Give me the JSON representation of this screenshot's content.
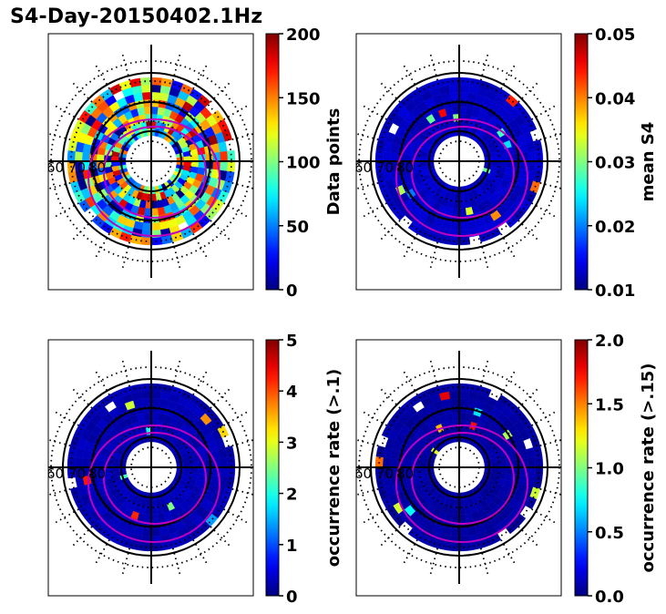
{
  "figure_title": "S4-Day-20150402.1Hz",
  "colors": {
    "ring": "#000000",
    "contour": "#c000c0",
    "cmap": [
      "#00007f",
      "#0000ff",
      "#0080ff",
      "#00ffff",
      "#80ff80",
      "#ffff00",
      "#ff8000",
      "#ff0000",
      "#7f0000"
    ]
  },
  "chart_data": [
    {
      "type": "heatmap",
      "projection": "polar",
      "title": "",
      "colorbar_label": "Data points",
      "clim": [
        0,
        200
      ],
      "colorbar_ticks": [
        "0",
        "50",
        "100",
        "150",
        "200"
      ],
      "background_level": 0.45,
      "variability": 0.55,
      "polar_labels": [
        "60",
        "70",
        "80"
      ]
    },
    {
      "type": "heatmap",
      "projection": "polar",
      "title": "",
      "colorbar_label": "mean S4",
      "clim": [
        0.01,
        0.05
      ],
      "colorbar_ticks": [
        "0.01",
        "0.02",
        "0.03",
        "0.04",
        "0.05"
      ],
      "background_level": 0.04,
      "variability": 0.05,
      "polar_labels": [
        "60",
        "70",
        "80"
      ]
    },
    {
      "type": "heatmap",
      "projection": "polar",
      "title": "",
      "colorbar_label": "occurrence rate (>.1)",
      "clim": [
        0,
        5
      ],
      "colorbar_ticks": [
        "0",
        "1",
        "2",
        "3",
        "4",
        "5"
      ],
      "background_level": 0.03,
      "variability": 0.04,
      "polar_labels": [
        "60",
        "70",
        "80"
      ]
    },
    {
      "type": "heatmap",
      "projection": "polar",
      "title": "",
      "colorbar_label": "occurrence rate (>.15)",
      "clim": [
        0.0,
        2.0
      ],
      "colorbar_ticks": [
        "0.0",
        "0.5",
        "1.0",
        "1.5",
        "2.0"
      ],
      "background_level": 0.02,
      "variability": 0.03,
      "polar_labels": [
        "60",
        "70",
        "80"
      ]
    }
  ]
}
